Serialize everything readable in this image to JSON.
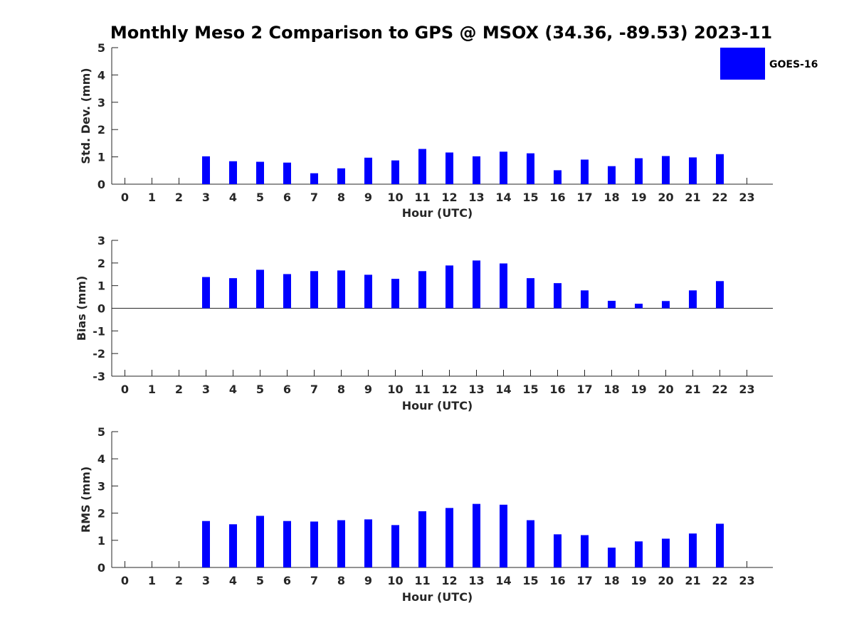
{
  "chart_data": [
    {
      "type": "bar",
      "title": "Monthly Meso 2 Comparison to GPS @ MSOX (34.36, -89.53) 2023-11",
      "xlabel": "Hour (UTC)",
      "ylabel": "Std. Dev. (mm)",
      "ylim": [
        0,
        5
      ],
      "yticks": [
        "0",
        "1",
        "2",
        "3",
        "4",
        "5"
      ],
      "categories": [
        "0",
        "1",
        "2",
        "3",
        "4",
        "5",
        "6",
        "7",
        "8",
        "9",
        "10",
        "11",
        "12",
        "13",
        "14",
        "15",
        "16",
        "17",
        "18",
        "19",
        "20",
        "21",
        "22",
        "23"
      ],
      "series": [
        {
          "name": "GOES-16",
          "color": "#0000ff",
          "values": [
            null,
            null,
            null,
            1.02,
            0.84,
            0.82,
            0.79,
            0.4,
            0.58,
            0.97,
            0.87,
            1.29,
            1.16,
            1.02,
            1.19,
            1.13,
            0.51,
            0.9,
            0.66,
            0.95,
            1.03,
            0.98,
            1.1,
            null
          ]
        }
      ],
      "legend": {
        "position": "top-right",
        "label": "GOES-16"
      }
    },
    {
      "type": "bar",
      "xlabel": "Hour (UTC)",
      "ylabel": "Bias (mm)",
      "ylim": [
        -3,
        3
      ],
      "yticks": [
        "-3",
        "-2",
        "-1",
        "0",
        "1",
        "2",
        "3"
      ],
      "categories": [
        "0",
        "1",
        "2",
        "3",
        "4",
        "5",
        "6",
        "7",
        "8",
        "9",
        "10",
        "11",
        "12",
        "13",
        "14",
        "15",
        "16",
        "17",
        "18",
        "19",
        "20",
        "21",
        "22",
        "23"
      ],
      "series": [
        {
          "name": "GOES-16",
          "color": "#0000ff",
          "values": [
            null,
            null,
            null,
            1.38,
            1.33,
            1.7,
            1.51,
            1.64,
            1.67,
            1.48,
            1.3,
            1.64,
            1.89,
            2.11,
            1.98,
            1.33,
            1.11,
            0.79,
            0.33,
            0.2,
            0.32,
            0.79,
            1.2,
            null
          ]
        }
      ]
    },
    {
      "type": "bar",
      "xlabel": "Hour (UTC)",
      "ylabel": "RMS (mm)",
      "ylim": [
        0,
        5
      ],
      "yticks": [
        "0",
        "1",
        "2",
        "3",
        "4",
        "5"
      ],
      "categories": [
        "0",
        "1",
        "2",
        "3",
        "4",
        "5",
        "6",
        "7",
        "8",
        "9",
        "10",
        "11",
        "12",
        "13",
        "14",
        "15",
        "16",
        "17",
        "18",
        "19",
        "20",
        "21",
        "22",
        "23"
      ],
      "series": [
        {
          "name": "GOES-16",
          "color": "#0000ff",
          "values": [
            null,
            null,
            null,
            1.71,
            1.59,
            1.9,
            1.71,
            1.69,
            1.74,
            1.77,
            1.56,
            2.07,
            2.19,
            2.34,
            2.31,
            1.74,
            1.22,
            1.19,
            0.73,
            0.96,
            1.06,
            1.25,
            1.61,
            null
          ]
        }
      ]
    }
  ]
}
